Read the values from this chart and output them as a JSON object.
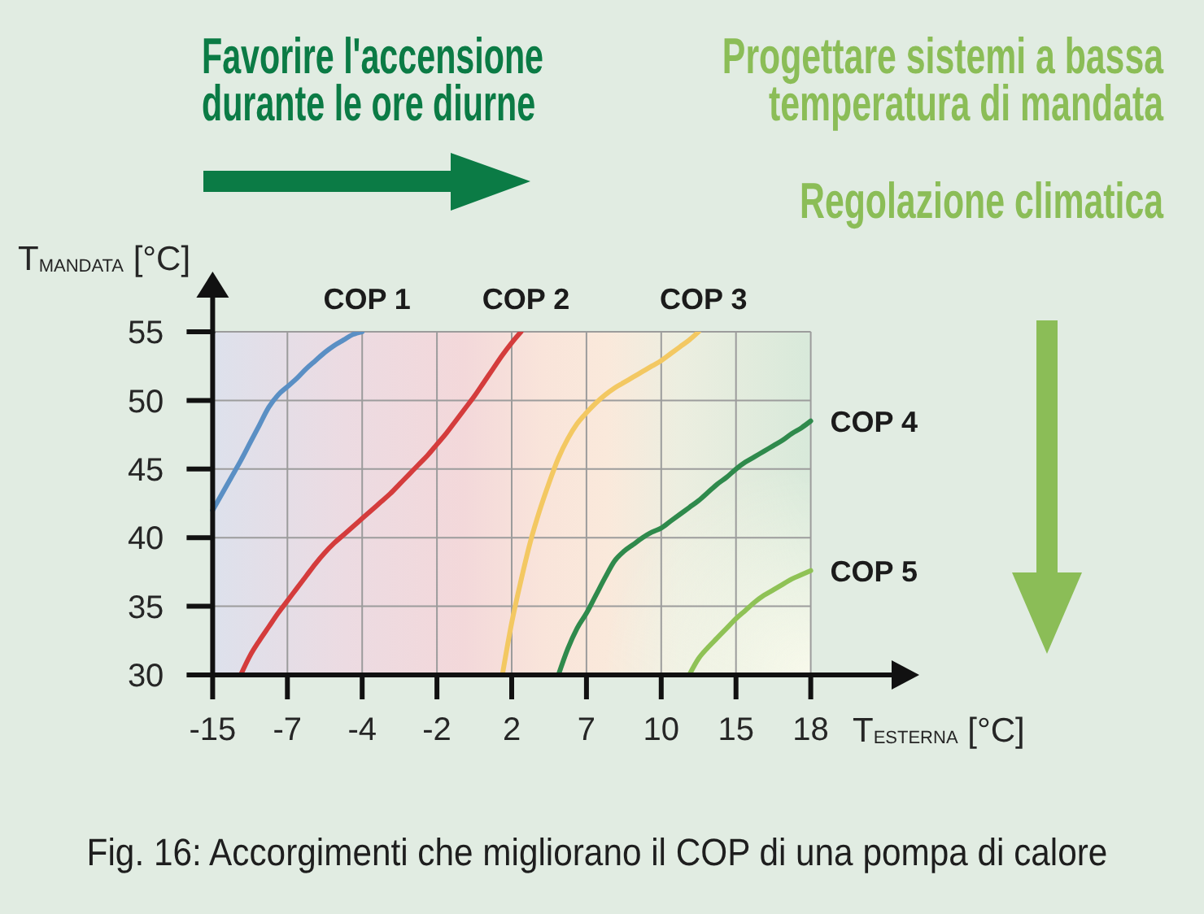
{
  "chart_data": {
    "type": "line",
    "xlabel": "T$_{ESTERNA}$ [°C]",
    "ylabel": "T$_{MANDATA}$ [°C]",
    "annotations": [
      "Favorire l'accensione durante le ore diurne",
      "Progettare sistemi a bassa temperatura di mandata",
      "Regolazione climatica",
      "Fig. 16: Accorgimenti che migliorano il COP di una pompa di calore"
    ],
    "categories": [
      "-15",
      null,
      null,
      null,
      null,
      null,
      null,
      null,
      "-7",
      null,
      null,
      null,
      null,
      null,
      null,
      null,
      "-4",
      null,
      null,
      null,
      null,
      null,
      null,
      null,
      "-2",
      null,
      null,
      null,
      null,
      null,
      null,
      null,
      "2",
      null,
      null,
      null,
      null,
      null,
      null,
      null,
      "7",
      null,
      null,
      null,
      null,
      null,
      null,
      null,
      "10",
      null,
      null,
      null,
      null,
      null,
      null,
      null,
      "15",
      null,
      null,
      null,
      null,
      null,
      null,
      null,
      "18"
    ],
    "ylim": [
      30,
      55
    ],
    "yticks": [
      30,
      35,
      40,
      45,
      50,
      55
    ],
    "grid": true,
    "marker": "none",
    "series": [
      {
        "name": "COP 1",
        "color": "#5a8fc4",
        "values": [
          42.0,
          43.2,
          44.4,
          45.6,
          46.9,
          48.2,
          49.5,
          50.4,
          51.0,
          51.6,
          52.3,
          52.9,
          53.5,
          54.0,
          54.4,
          54.8,
          55,
          null,
          null,
          null,
          null,
          null,
          null,
          null,
          null,
          null,
          null,
          null,
          null,
          null,
          null,
          null,
          null,
          null,
          null,
          null,
          null,
          null,
          null,
          null,
          null,
          null,
          null,
          null,
          null,
          null,
          null,
          null,
          null,
          null,
          null,
          null,
          null,
          null,
          null,
          null,
          null,
          null,
          null,
          null,
          null,
          null,
          null,
          null,
          null
        ]
      },
      {
        "name": "COP 2",
        "color": "#d43c3c",
        "values": [
          null,
          null,
          null,
          30,
          31.4,
          32.5,
          33.5,
          34.5,
          35.4,
          36.3,
          37.2,
          38.1,
          38.9,
          39.6,
          40.2,
          40.8,
          41.4,
          42.0,
          42.6,
          43.2,
          43.9,
          44.6,
          45.3,
          46.0,
          46.8,
          47.6,
          48.5,
          49.4,
          50.3,
          51.3,
          52.3,
          53.3,
          54.2,
          55,
          null,
          null,
          null,
          null,
          null,
          null,
          null,
          null,
          null,
          null,
          null,
          null,
          null,
          null,
          null,
          null,
          null,
          null,
          null,
          null,
          null,
          null,
          null,
          null,
          null,
          null,
          null,
          null,
          null,
          null,
          null
        ]
      },
      {
        "name": "COP 3",
        "color": "#f3c862",
        "values": [
          null,
          null,
          null,
          null,
          null,
          null,
          null,
          null,
          null,
          null,
          null,
          null,
          null,
          null,
          null,
          null,
          null,
          null,
          null,
          null,
          null,
          null,
          null,
          null,
          null,
          null,
          null,
          null,
          null,
          null,
          null,
          30,
          33.8,
          36.9,
          39.7,
          42.0,
          44.0,
          45.8,
          47.2,
          48.3,
          49.1,
          49.8,
          50.4,
          50.9,
          51.3,
          51.7,
          52.1,
          52.5,
          52.9,
          53.4,
          53.9,
          54.4,
          55,
          null,
          null,
          null,
          null,
          null,
          null,
          null,
          null,
          null,
          null,
          null,
          null
        ]
      },
      {
        "name": "COP 4",
        "color": "#2f8a4c",
        "values": [
          null,
          null,
          null,
          null,
          null,
          null,
          null,
          null,
          null,
          null,
          null,
          null,
          null,
          null,
          null,
          null,
          null,
          null,
          null,
          null,
          null,
          null,
          null,
          null,
          null,
          null,
          null,
          null,
          null,
          null,
          null,
          null,
          null,
          null,
          null,
          null,
          null,
          30,
          31.9,
          33.4,
          34.5,
          35.8,
          37.1,
          38.3,
          39.0,
          39.5,
          40.0,
          40.4,
          40.7,
          41.2,
          41.7,
          42.2,
          42.7,
          43.3,
          43.9,
          44.4,
          45.0,
          45.5,
          45.9,
          46.3,
          46.7,
          47.1,
          47.6,
          48.0,
          48.5
        ]
      },
      {
        "name": "COP 5",
        "color": "#8fc256",
        "values": [
          null,
          null,
          null,
          null,
          null,
          null,
          null,
          null,
          null,
          null,
          null,
          null,
          null,
          null,
          null,
          null,
          null,
          null,
          null,
          null,
          null,
          null,
          null,
          null,
          null,
          null,
          null,
          null,
          null,
          null,
          null,
          null,
          null,
          null,
          null,
          null,
          null,
          null,
          null,
          null,
          null,
          null,
          null,
          null,
          null,
          null,
          null,
          null,
          null,
          null,
          null,
          30,
          31.2,
          32.0,
          32.7,
          33.4,
          34.1,
          34.7,
          35.3,
          35.8,
          36.2,
          36.6,
          37.0,
          37.3,
          37.6
        ]
      }
    ]
  }
}
